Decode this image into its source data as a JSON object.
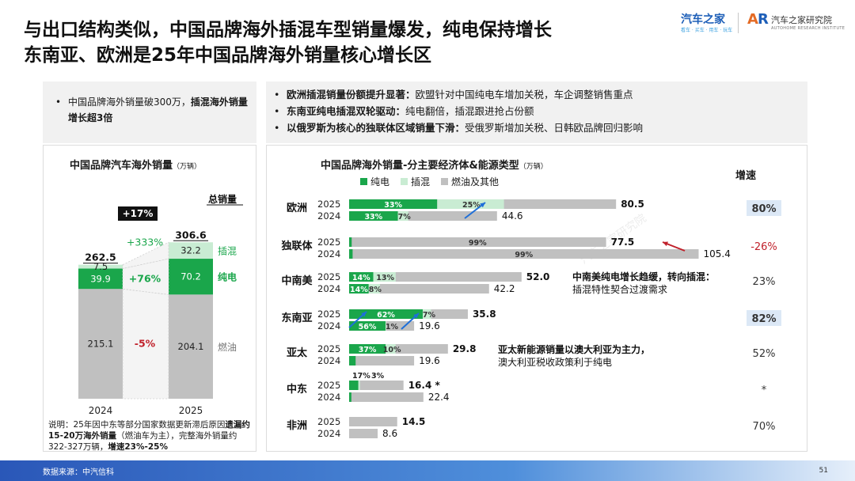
{
  "header": {
    "title_line1": "与出口结构类似，中国品牌海外插混车型销量爆发，纯电保持增长",
    "title_line2": "东南亚、欧洲是25年中国品牌海外销量核心增长区"
  },
  "logos": {
    "logo1_text": "汽车之家",
    "logo1_sub": "看车 · 买车 · 用车 · 玩车",
    "logo2_text": "汽车之家研究院",
    "logo2_sub": "AUTOHOME RESEARCH INSTITUTE"
  },
  "left_note": {
    "normal": "中国品牌海外销量破300万，",
    "bold": "插混海外销量增长超3倍"
  },
  "right_note": [
    {
      "bold": "欧洲插混销量份额提升显著：",
      "text": "欧盟针对中国纯电车增加关税，车企调整销售重点"
    },
    {
      "bold": "东南亚纯电插混双轮驱动：",
      "text": "纯电翻倍，插混跟进抢占份额"
    },
    {
      "bold": "以俄罗斯为核心的独联体区域销量下滑：",
      "text": "受俄罗斯增加关税、日韩欧品牌回归影响"
    }
  ],
  "colors": {
    "bev": "#1aa64b",
    "phev": "#c9ecd3",
    "ice": "#c0c0c0",
    "accent_red": "#c0202a",
    "highlight": "#dce8f6",
    "arrow_blue": "#1e6fd9"
  },
  "chart_data": [
    {
      "type": "bar",
      "stacked": true,
      "title": "中国品牌汽车海外销量",
      "unit": "（万辆）",
      "categories": [
        "2024",
        "2025"
      ],
      "series": [
        {
          "name": "燃油",
          "values": [
            215.1,
            204.1
          ],
          "change": "-5%"
        },
        {
          "name": "纯电",
          "values": [
            39.9,
            70.2
          ],
          "change": "+76%"
        },
        {
          "name": "插混",
          "values": [
            7.5,
            32.2
          ],
          "change": "+333%"
        }
      ],
      "totals": [
        262.5,
        306.6
      ],
      "total_label": "总销量",
      "total_change": "+17%",
      "ylim": [
        0,
        310
      ],
      "footnote": {
        "p1": "说明：25年因中东等部分国家数据更新滞后原因",
        "p2": "遗漏约15-20万海外销量",
        "p3": "（燃油车为主），完整海外销量约322-327万辆，",
        "p4": "增速23%-25%"
      }
    },
    {
      "type": "bar",
      "orientation": "horizontal",
      "stacked": true,
      "title": "中国品牌海外销量-分主要经济体&能源类型",
      "unit": "（万辆）",
      "legend": [
        "纯电",
        "插混",
        "燃油及其他"
      ],
      "legend_position": "top",
      "growth_header": "增速",
      "regions": [
        {
          "name": "欧洲",
          "growth": "80%",
          "highlight": true,
          "growth_red": false,
          "rows": [
            {
              "year": "2025",
              "total": 80.5,
              "total_label": "80.5",
              "bev_pct": 0.33,
              "phev_pct": 0.25,
              "labels": [
                "33%",
                "25%"
              ]
            },
            {
              "year": "2024",
              "total": 44.6,
              "total_label": "44.6",
              "bev_pct": 0.33,
              "phev_pct": 0.07,
              "labels": [
                "33%",
                "7%"
              ]
            }
          ]
        },
        {
          "name": "独联体",
          "growth": "-26%",
          "highlight": false,
          "growth_red": true,
          "rows": [
            {
              "year": "2025",
              "total": 77.5,
              "total_label": "77.5",
              "bev_pct": 0.01,
              "phev_pct": 0.0,
              "labels": [
                "99%"
              ]
            },
            {
              "year": "2024",
              "total": 105.4,
              "total_label": "105.4",
              "bev_pct": 0.01,
              "phev_pct": 0.0,
              "labels": [
                "99%"
              ]
            }
          ]
        },
        {
          "name": "中南美",
          "growth": "23%",
          "highlight": false,
          "growth_red": false,
          "rows": [
            {
              "year": "2025",
              "total": 52.0,
              "total_label": "52.0",
              "bev_pct": 0.14,
              "phev_pct": 0.13,
              "labels": [
                "14%",
                "13%"
              ]
            },
            {
              "year": "2024",
              "total": 42.2,
              "total_label": "42.2",
              "bev_pct": 0.14,
              "phev_pct": 0.08,
              "labels": [
                "14%",
                "8%"
              ]
            }
          ]
        },
        {
          "name": "东南亚",
          "growth": "82%",
          "highlight": true,
          "growth_red": false,
          "rows": [
            {
              "year": "2025",
              "total": 35.8,
              "total_label": "35.8",
              "bev_pct": 0.62,
              "phev_pct": 0.07,
              "labels": [
                "62%",
                "7%"
              ]
            },
            {
              "year": "2024",
              "total": 19.6,
              "total_label": "19.6",
              "bev_pct": 0.56,
              "phev_pct": 0.01,
              "labels": [
                "56%",
                "1%"
              ]
            }
          ]
        },
        {
          "name": "亚太",
          "growth": "52%",
          "highlight": false,
          "growth_red": false,
          "rows": [
            {
              "year": "2025",
              "total": 29.8,
              "total_label": "29.8",
              "bev_pct": 0.37,
              "phev_pct": 0.1,
              "labels": [
                "37%",
                "10%"
              ]
            },
            {
              "year": "2024",
              "total": 19.6,
              "total_label": "19.6",
              "bev_pct": 0.1,
              "phev_pct": 0.0,
              "labels": []
            }
          ]
        },
        {
          "name": "中东",
          "growth": "*",
          "highlight": false,
          "growth_red": false,
          "rows": [
            {
              "year": "2025",
              "total": 16.4,
              "total_label": "16.4 *",
              "bev_pct": 0.17,
              "phev_pct": 0.03,
              "labels": [
                "17%",
                "3%"
              ]
            },
            {
              "year": "2024",
              "total": 22.4,
              "total_label": "22.4",
              "bev_pct": 0.03,
              "phev_pct": 0.0,
              "labels": []
            }
          ]
        },
        {
          "name": "非洲",
          "growth": "70%",
          "highlight": false,
          "growth_red": false,
          "rows": [
            {
              "year": "2025",
              "total": 14.5,
              "total_label": "14.5",
              "bev_pct": 0.0,
              "phev_pct": 0.0,
              "labels": []
            },
            {
              "year": "2024",
              "total": 8.6,
              "total_label": "8.6",
              "bev_pct": 0.0,
              "phev_pct": 0.0,
              "labels": []
            }
          ]
        }
      ],
      "annotations": {
        "latam_bold": "中南美纯电增长趋缓，转向插混：",
        "latam_text": "插混特性契合过渡需求",
        "apac_bold": "亚太新能源销量以澳大利亚为主力，",
        "apac_text": "澳大利亚税收政策利于纯电"
      },
      "xlim": [
        0,
        106
      ]
    }
  ],
  "watermark": "汽车之家研究院",
  "footer": {
    "source": "数据来源：中汽信科",
    "page": "51"
  }
}
